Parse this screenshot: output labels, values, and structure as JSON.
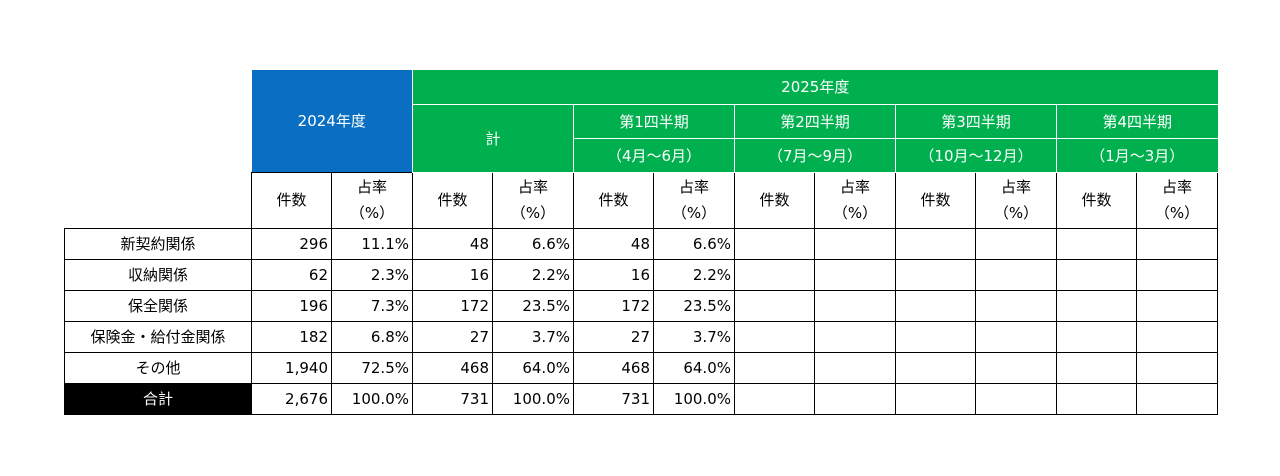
{
  "header": {
    "fy2024": "2024年度",
    "fy2025": "2025年度",
    "total": "計",
    "quarters": [
      {
        "name": "第1四半期",
        "period": "（4月～6月）"
      },
      {
        "name": "第2四半期",
        "period": "（7月～9月）"
      },
      {
        "name": "第3四半期",
        "period": "（10月～12月）"
      },
      {
        "name": "第4四半期",
        "period": "（1月～3月）"
      }
    ],
    "count": "件数",
    "share_line1": "占率",
    "share_line2": "（%）"
  },
  "rows": [
    {
      "label": "新契約関係",
      "v": [
        "296",
        "11.1%",
        "48",
        "6.6%",
        "48",
        "6.6%",
        "",
        "",
        "",
        "",
        "",
        ""
      ]
    },
    {
      "label": "収納関係",
      "v": [
        "62",
        "2.3%",
        "16",
        "2.2%",
        "16",
        "2.2%",
        "",
        "",
        "",
        "",
        "",
        ""
      ]
    },
    {
      "label": "保全関係",
      "v": [
        "196",
        "7.3%",
        "172",
        "23.5%",
        "172",
        "23.5%",
        "",
        "",
        "",
        "",
        "",
        ""
      ]
    },
    {
      "label": "保険金・給付金関係",
      "v": [
        "182",
        "6.8%",
        "27",
        "3.7%",
        "27",
        "3.7%",
        "",
        "",
        "",
        "",
        "",
        ""
      ]
    },
    {
      "label": "その他",
      "v": [
        "1,940",
        "72.5%",
        "468",
        "64.0%",
        "468",
        "64.0%",
        "",
        "",
        "",
        "",
        "",
        ""
      ]
    },
    {
      "label": "合計",
      "v": [
        "2,676",
        "100.0%",
        "731",
        "100.0%",
        "731",
        "100.0%",
        "",
        "",
        "",
        "",
        "",
        ""
      ]
    }
  ],
  "colors": {
    "fy2024_header": "#0a6fc2",
    "fy2025_header": "#00b04f",
    "total_label": "#000000"
  }
}
